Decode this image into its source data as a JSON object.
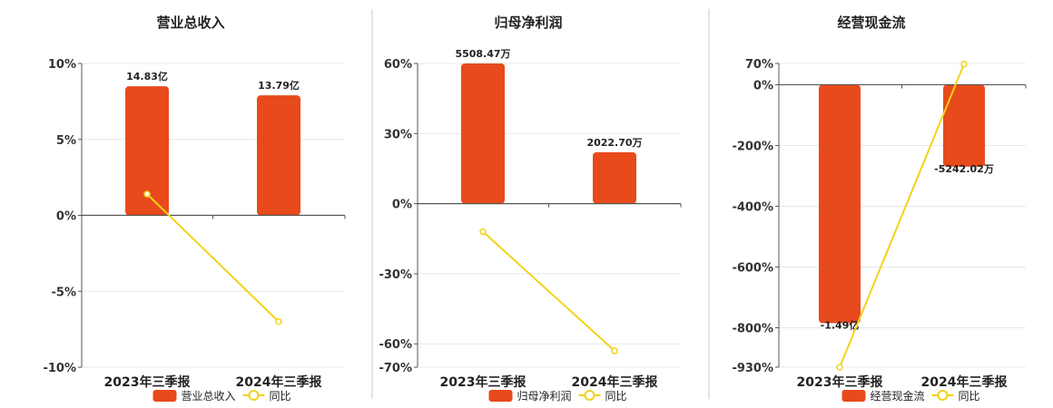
{
  "colors": {
    "bar": "#e84a1b",
    "line": "#f2d21b",
    "grid": "#e8e8e8",
    "axis": "#555555",
    "divider": "#cccccc"
  },
  "chart_data": [
    {
      "type": "bar",
      "title": "营业总收入",
      "categories": [
        "2023年三季报",
        "2024年三季报"
      ],
      "y_ticks": [
        "10%",
        "5%",
        "0%",
        "-5%",
        "-10%"
      ],
      "ylim": [
        -10,
        10
      ],
      "tick_values": [
        10,
        5,
        0,
        -5,
        -10
      ],
      "series": [
        {
          "name": "营业总收入",
          "kind": "bar",
          "values": [
            8.5,
            7.9
          ],
          "labels": [
            "14.83亿",
            "13.79亿"
          ]
        },
        {
          "name": "同比",
          "kind": "line",
          "values": [
            1.4,
            -7.0
          ]
        }
      ],
      "legend_position": "bottom"
    },
    {
      "type": "bar",
      "title": "归母净利润",
      "categories": [
        "2023年三季报",
        "2024年三季报"
      ],
      "y_ticks": [
        "60%",
        "30%",
        "0%",
        "-30%",
        "-60%",
        "-70%"
      ],
      "ylim": [
        -70,
        60
      ],
      "tick_values": [
        60,
        30,
        0,
        -30,
        -60,
        -70
      ],
      "series": [
        {
          "name": "归母净利润",
          "kind": "bar",
          "values": [
            60,
            22
          ],
          "labels": [
            "5508.47万",
            "2022.70万"
          ]
        },
        {
          "name": "同比",
          "kind": "line",
          "values": [
            -12,
            -63
          ]
        }
      ],
      "legend_position": "bottom"
    },
    {
      "type": "bar",
      "title": "经营现金流",
      "categories": [
        "2023年三季报",
        "2024年三季报"
      ],
      "y_ticks": [
        "70%",
        "0%",
        "-200%",
        "-400%",
        "-600%",
        "-800%",
        "-930%"
      ],
      "ylim": [
        -930,
        70
      ],
      "tick_values": [
        70,
        0,
        -200,
        -400,
        -600,
        -800,
        -930
      ],
      "series": [
        {
          "name": "经营现金流",
          "kind": "bar",
          "values": [
            -785,
            -270
          ],
          "labels": [
            "-1.49亿",
            "-5242.02万"
          ]
        },
        {
          "name": "同比",
          "kind": "line",
          "values": [
            -930,
            68
          ]
        }
      ],
      "legend_position": "bottom"
    }
  ]
}
